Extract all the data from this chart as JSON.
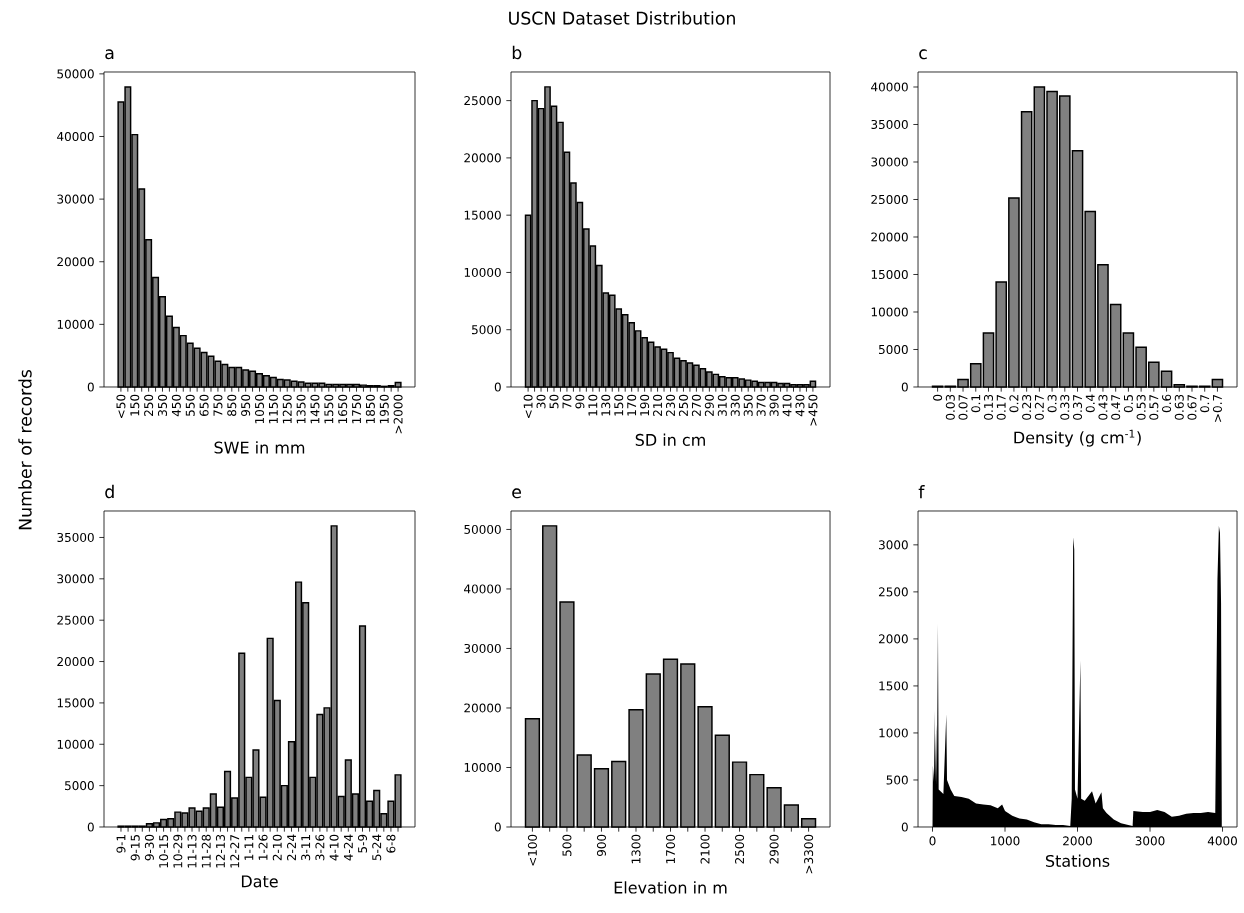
{
  "chart_data": [
    {
      "type": "bar",
      "title": "a",
      "annotations": [
        "USCN Dataset Distribution"
      ],
      "ylabel": "Number of records",
      "xlabel": "SWE in mm",
      "color": "#808080",
      "categories": [
        "<50",
        null,
        "150",
        null,
        "250",
        null,
        "350",
        null,
        "450",
        null,
        "550",
        null,
        "650",
        null,
        "750",
        null,
        "850",
        null,
        "950",
        null,
        "1050",
        null,
        "1150",
        null,
        "1250",
        null,
        "1350",
        null,
        "1450",
        null,
        "1550",
        null,
        "1650",
        null,
        "1750",
        null,
        "1850",
        null,
        "1950",
        null,
        ">2000"
      ],
      "values": [
        45500,
        47900,
        40300,
        31600,
        23500,
        17500,
        14400,
        11300,
        9500,
        8200,
        7000,
        6200,
        5500,
        4900,
        4100,
        3600,
        3100,
        3100,
        2700,
        2500,
        2100,
        1800,
        1500,
        1200,
        1100,
        900,
        800,
        600,
        600,
        600,
        400,
        400,
        400,
        400,
        400,
        300,
        200,
        200,
        100,
        200,
        700
      ],
      "ylim": [
        0,
        50300
      ],
      "yticks": [
        0,
        10000,
        20000,
        30000,
        40000,
        50000
      ]
    },
    {
      "type": "bar",
      "title": "b",
      "xlabel": "SD in cm",
      "color": "#808080",
      "categories": [
        "<10",
        null,
        "30",
        null,
        "50",
        null,
        "70",
        null,
        "90",
        null,
        "110",
        null,
        "130",
        null,
        "150",
        null,
        "170",
        null,
        "190",
        null,
        "210",
        null,
        "230",
        null,
        "250",
        null,
        "270",
        null,
        "290",
        null,
        "310",
        null,
        "330",
        null,
        "350",
        null,
        "370",
        null,
        "390",
        null,
        "410",
        null,
        "430",
        null,
        ">450"
      ],
      "values": [
        15000,
        25000,
        24300,
        26200,
        24500,
        23100,
        20500,
        17800,
        16100,
        13800,
        12300,
        10600,
        8200,
        8000,
        6800,
        6300,
        5600,
        4900,
        4300,
        3900,
        3500,
        3300,
        3000,
        2500,
        2300,
        2100,
        1900,
        1600,
        1300,
        1100,
        900,
        800,
        800,
        700,
        600,
        500,
        400,
        400,
        400,
        300,
        300,
        200,
        200,
        200,
        500
      ],
      "ylim": [
        0,
        27500
      ],
      "yticks": [
        0,
        5000,
        10000,
        15000,
        20000,
        25000
      ]
    },
    {
      "type": "bar",
      "title": "c",
      "xlabel": "Density (g cm$^{-1}$)",
      "color": "#808080",
      "categories": [
        "0",
        "0.03",
        "0.07",
        "0.1",
        "0.13",
        "0.17",
        "0.2",
        "0.23",
        "0.27",
        "0.3",
        "0.33",
        "0.37",
        "0.4",
        "0.43",
        "0.47",
        "0.5",
        "0.53",
        "0.57",
        "0.6",
        "0.63",
        "0.67",
        "0.7",
        ">0.7"
      ],
      "values": [
        100,
        100,
        1000,
        3100,
        7200,
        14000,
        25200,
        36700,
        40000,
        39400,
        38800,
        31500,
        23400,
        16300,
        11000,
        7200,
        5300,
        3300,
        2100,
        300,
        100,
        100,
        1000
      ],
      "ylim": [
        0,
        42000
      ],
      "yticks": [
        0,
        5000,
        10000,
        15000,
        20000,
        25000,
        30000,
        35000,
        40000
      ]
    },
    {
      "type": "bar",
      "title": "d",
      "xlabel": "Date",
      "color": "#808080",
      "categories": [
        "9-1",
        null,
        "9-15",
        null,
        "9-30",
        null,
        "10-15",
        null,
        "10-29",
        null,
        "11-13",
        null,
        "11-28",
        null,
        "12-13",
        null,
        "12-27",
        null,
        "1-11",
        null,
        "1-26",
        null,
        "2-10",
        null,
        "2-24",
        null,
        "3-11",
        null,
        "3-26",
        null,
        "4-10",
        null,
        "4-24",
        null,
        "5-9",
        null,
        "5-24",
        null,
        "6-8",
        null
      ],
      "values": [
        100,
        100,
        100,
        100,
        400,
        500,
        900,
        1000,
        1800,
        1700,
        2300,
        1900,
        2300,
        4000,
        2400,
        6700,
        3500,
        21000,
        6000,
        9300,
        3600,
        22800,
        15300,
        5000,
        10300,
        29600,
        27100,
        6000,
        13600,
        14400,
        36400,
        3700,
        8100,
        4000,
        24300,
        3100,
        4400,
        1600,
        3100,
        6300
      ],
      "ylim": [
        0,
        38200
      ],
      "yticks": [
        0,
        5000,
        10000,
        15000,
        20000,
        25000,
        30000,
        35000
      ]
    },
    {
      "type": "bar",
      "title": "e",
      "xlabel": "Elevation in m",
      "color": "#808080",
      "categories": [
        "<100",
        null,
        "500",
        null,
        "900",
        null,
        "1300",
        null,
        "1700",
        null,
        "2100",
        null,
        "2500",
        null,
        "2900",
        null,
        ">3300"
      ],
      "values": [
        18200,
        50600,
        37800,
        12100,
        9800,
        11000,
        19700,
        25700,
        28200,
        27400,
        20200,
        15400,
        10900,
        8800,
        6600,
        3700,
        1400
      ],
      "ylim": [
        0,
        53100
      ],
      "yticks": [
        0,
        10000,
        20000,
        30000,
        40000,
        50000
      ]
    },
    {
      "type": "area",
      "title": "f",
      "xlabel": "Stations",
      "color": "#000000",
      "x": [
        0,
        5,
        20,
        25,
        35,
        50,
        60,
        75,
        85,
        150,
        190,
        200,
        250,
        300,
        400,
        500,
        600,
        700,
        800,
        900,
        960,
        1000,
        1100,
        1200,
        1300,
        1400,
        1500,
        1600,
        1700,
        1800,
        1900,
        1920,
        1940,
        1955,
        1965,
        2000,
        2040,
        2050,
        2100,
        2200,
        2250,
        2330,
        2350,
        2400,
        2500,
        2600,
        2700,
        2760,
        2770,
        2900,
        3000,
        3100,
        3200,
        3300,
        3400,
        3500,
        3600,
        3700,
        3800,
        3900,
        3930,
        3950,
        3965,
        3980,
        3990
      ],
      "values": [
        0,
        650,
        480,
        1240,
        480,
        1090,
        450,
        2160,
        400,
        350,
        1200,
        500,
        400,
        330,
        320,
        300,
        250,
        240,
        230,
        200,
        240,
        170,
        120,
        90,
        80,
        50,
        30,
        30,
        20,
        20,
        10,
        300,
        3080,
        2950,
        400,
        300,
        1770,
        300,
        280,
        380,
        250,
        370,
        200,
        150,
        80,
        40,
        20,
        10,
        170,
        160,
        160,
        180,
        160,
        110,
        120,
        140,
        150,
        150,
        160,
        150,
        2630,
        3200,
        3130,
        2380,
        0
      ],
      "xlim": [
        -200,
        4200
      ],
      "xticks": [
        0,
        1000,
        2000,
        3000,
        4000
      ],
      "ylim": [
        0,
        3360
      ],
      "yticks": [
        0,
        500,
        1000,
        1500,
        2000,
        2500,
        3000
      ]
    }
  ]
}
